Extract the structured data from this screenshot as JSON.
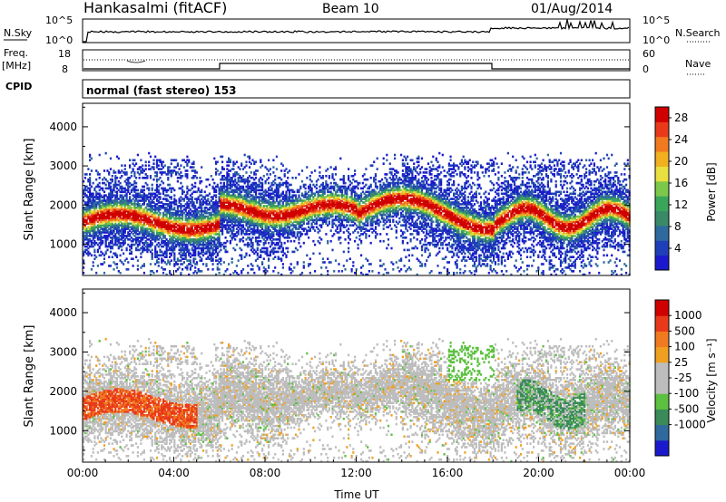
{
  "header": {
    "station": "Hankasalmi (fitACF)",
    "beam": "Beam 10",
    "date": "01/Aug/2014"
  },
  "top_panels": {
    "nsky_label": "N.Sky",
    "nsearch_label": "N.Search",
    "nsky_ticks": [
      "10^5",
      "10^0"
    ],
    "nsky_right_ticks": [
      "10^5",
      "10^0"
    ],
    "freq_label_1": "Freq.",
    "freq_label_2": "[MHz]",
    "freq_ticks": [
      "18",
      "8"
    ],
    "nave_label": "Nave",
    "nave_ticks": [
      "60",
      "0"
    ],
    "cpid_label": "CPID",
    "cpid_text": "normal (fast stereo) 153"
  },
  "colors": {
    "power": [
      "#1a1acc",
      "#1f3fb8",
      "#2e6a9e",
      "#3a8a6a",
      "#3aa65a",
      "#7cc84a",
      "#e8e040",
      "#f0b020",
      "#f07a20",
      "#e83a1a",
      "#d00000"
    ],
    "velocity": [
      "#1a1acc",
      "#2e6a9e",
      "#3a8a5a",
      "#5cc040",
      "#bdbdbd",
      "#bdbdbd",
      "#f0a020",
      "#f07a20",
      "#e83a1a",
      "#d00000"
    ]
  },
  "chart_data": [
    {
      "type": "heatmap",
      "name": "power",
      "xlabel": "",
      "ylabel": "Slant Range [km]",
      "ylim": [
        200,
        4600
      ],
      "xlim": [
        0,
        24
      ],
      "yticks": [
        "4000",
        "3000",
        "2000",
        "1000"
      ],
      "colorbar_label": "Power [dB]",
      "colorbar_ticks": [
        "28",
        "24",
        "20",
        "16",
        "12",
        "8",
        "4"
      ],
      "colorbar_range": [
        0,
        30
      ]
    },
    {
      "type": "heatmap",
      "name": "velocity",
      "xlabel": "Time UT",
      "ylabel": "Slant Range [km]",
      "ylim": [
        200,
        4600
      ],
      "xlim": [
        0,
        24
      ],
      "yticks": [
        "4000",
        "3000",
        "2000",
        "1000"
      ],
      "xticks": [
        "00:00",
        "04:00",
        "08:00",
        "12:00",
        "16:00",
        "20:00",
        "00:00"
      ],
      "colorbar_label": "Velocity [m s⁻¹]",
      "colorbar_ticks": [
        "1000",
        "500",
        "100",
        "25",
        "-25",
        "-100",
        "-500",
        "-1000"
      ]
    }
  ]
}
